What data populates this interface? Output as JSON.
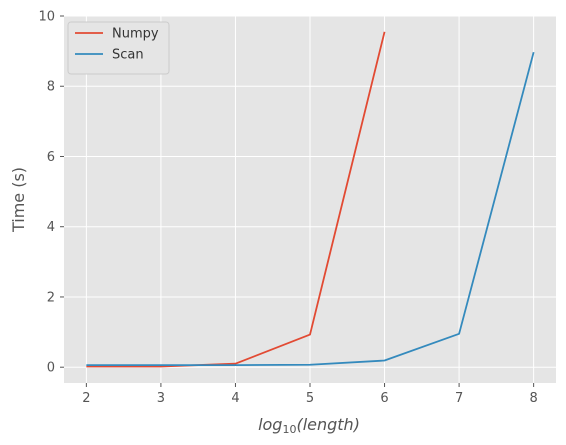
{
  "chart_data": {
    "type": "line",
    "x": [
      2,
      3,
      4,
      5,
      6,
      7,
      8
    ],
    "series": [
      {
        "name": "Numpy",
        "color": "#E24A33",
        "values": [
          0.02,
          0.02,
          0.1,
          0.93,
          9.55,
          null,
          null
        ]
      },
      {
        "name": "Scan",
        "color": "#348ABD",
        "values": [
          0.06,
          0.06,
          0.06,
          0.07,
          0.19,
          0.95,
          8.97
        ]
      }
    ],
    "xlim": [
      1.7,
      8.3
    ],
    "ylim": [
      -0.45,
      10
    ],
    "xticks": [
      2,
      3,
      4,
      5,
      6,
      7,
      8
    ],
    "yticks": [
      0,
      2,
      4,
      6,
      8,
      10
    ],
    "xlabel": {
      "prefix": "log",
      "subscript": "10",
      "suffix": "(length)"
    },
    "ylabel": "Time (s)",
    "legend": "top-left",
    "grid": true,
    "style": "ggplot"
  }
}
